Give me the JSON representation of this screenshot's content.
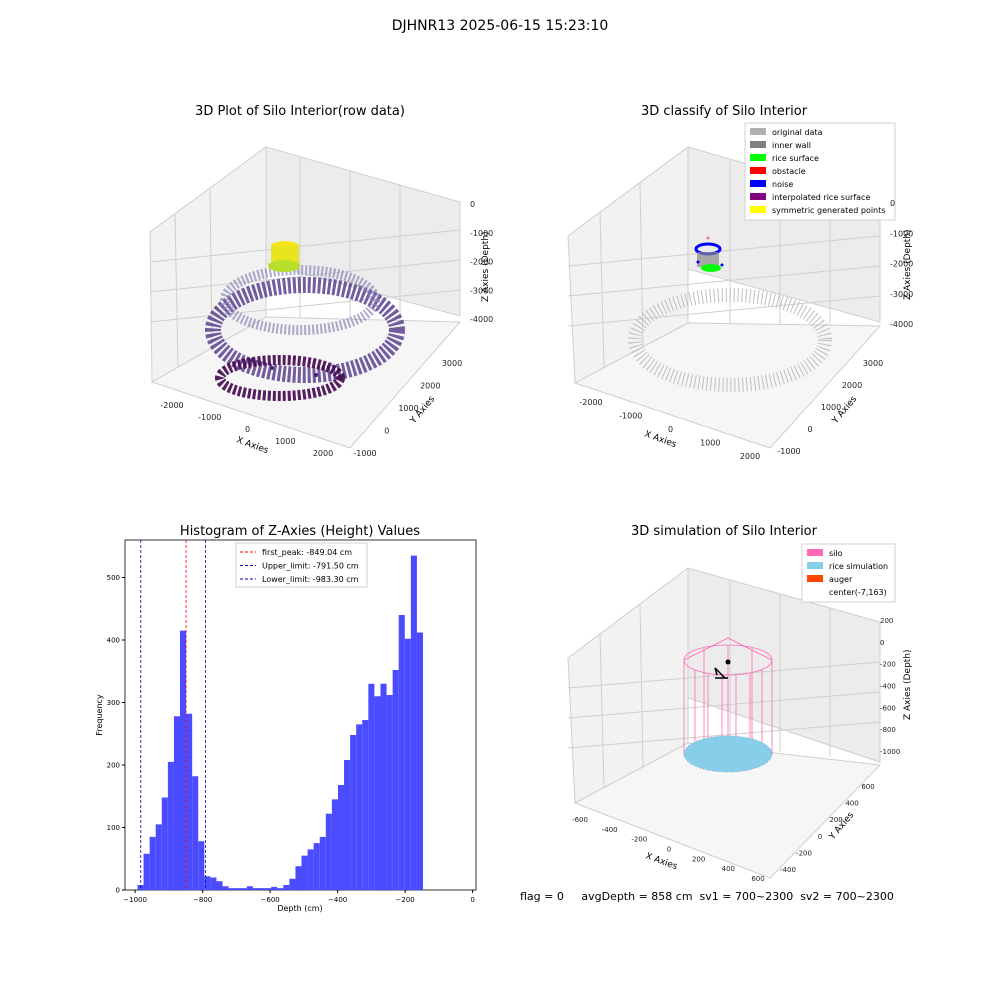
{
  "suptitle": "DJHNR13 2025-06-15 15:23:10",
  "panels": {
    "raw": {
      "title": "3D Plot of Silo Interior(row data)",
      "xlabel": "X Axies",
      "ylabel": "Y Axies",
      "zlabel": "Z Axies (Depth)",
      "xticks": [
        "-2000",
        "-1000",
        "0",
        "1000",
        "2000"
      ],
      "yticks": [
        "-1000",
        "0",
        "1000",
        "2000",
        "3000"
      ],
      "zticks": [
        "0",
        "-1000",
        "-2000",
        "-3000",
        "-4000"
      ]
    },
    "classify": {
      "title": "3D classify of Silo Interior",
      "xlabel": "X Axies",
      "ylabel": "Y Axies",
      "zlabel": "Z Axies (Depth)",
      "xticks": [
        "-2000",
        "-1000",
        "0",
        "1000",
        "2000"
      ],
      "yticks": [
        "-1000",
        "0",
        "1000",
        "2000",
        "3000"
      ],
      "zticks": [
        "0",
        "-1000",
        "-2000",
        "-3000",
        "-4000"
      ],
      "legend": [
        {
          "label": "original data",
          "color": "#b0b0b0"
        },
        {
          "label": "inner wall",
          "color": "#808080"
        },
        {
          "label": "rice surface",
          "color": "#00ff00"
        },
        {
          "label": "obstacle",
          "color": "#ff0000"
        },
        {
          "label": "noise",
          "color": "#0000ff"
        },
        {
          "label": "interpolated rice surface",
          "color": "#800080"
        },
        {
          "label": "symmetric generated points",
          "color": "#ffff00"
        }
      ]
    },
    "simulation": {
      "title": "3D simulation of Silo Interior",
      "xlabel": "X Axies",
      "ylabel": "Y Axies",
      "zlabel": "Z Axies (Depth)",
      "xticks": [
        "-600",
        "-400",
        "-200",
        "0",
        "200",
        "400",
        "600"
      ],
      "yticks": [
        "-400",
        "-200",
        "0",
        "200",
        "400",
        "600"
      ],
      "zticks": [
        "200",
        "0",
        "-200",
        "-400",
        "-600",
        "-800",
        "-1000"
      ],
      "legend": [
        {
          "label": "silo",
          "color": "#ff69b4"
        },
        {
          "label": "rice simulation",
          "color": "#87ceeb"
        },
        {
          "label": "auger",
          "color": "#ff4500"
        },
        {
          "label": "center(-7,163)",
          "color": ""
        }
      ]
    }
  },
  "footer": "flag = 0     avgDepth = 858 cm  sv1 = 700~2300  sv2 = 700~2300",
  "chart_data": {
    "type": "bar",
    "title": "Histogram of Z-Axies (Height) Values",
    "xlabel": "Depth (cm)",
    "ylabel": "Frequency",
    "xlim": [
      -1030,
      10
    ],
    "ylim": [
      0,
      560
    ],
    "xticks": [
      -1000,
      -800,
      -600,
      -400,
      -200,
      0
    ],
    "yticks": [
      0,
      100,
      200,
      300,
      400,
      500
    ],
    "grid": false,
    "legend_position": "top-center",
    "bar_color": "#4b4bff",
    "bin_width": 18,
    "bins_start": -993,
    "values": [
      8,
      58,
      85,
      105,
      148,
      205,
      278,
      415,
      282,
      182,
      78,
      22,
      20,
      14,
      6,
      3,
      3,
      3,
      6,
      3,
      3,
      3,
      5,
      3,
      8,
      18,
      38,
      55,
      65,
      75,
      85,
      122,
      145,
      168,
      208,
      248,
      265,
      272,
      330,
      310,
      330,
      312,
      352,
      440,
      402,
      535,
      412
    ],
    "lines": [
      {
        "label": "first_peak: -849.04 cm",
        "x": -849.04,
        "color": "#ff0000"
      },
      {
        "label": "Upper_limit: -791.50 cm",
        "x": -791.5,
        "color": "#0000aa"
      },
      {
        "label": "Lower_limit: -983.30 cm",
        "x": -983.3,
        "color": "#0000aa"
      }
    ]
  }
}
